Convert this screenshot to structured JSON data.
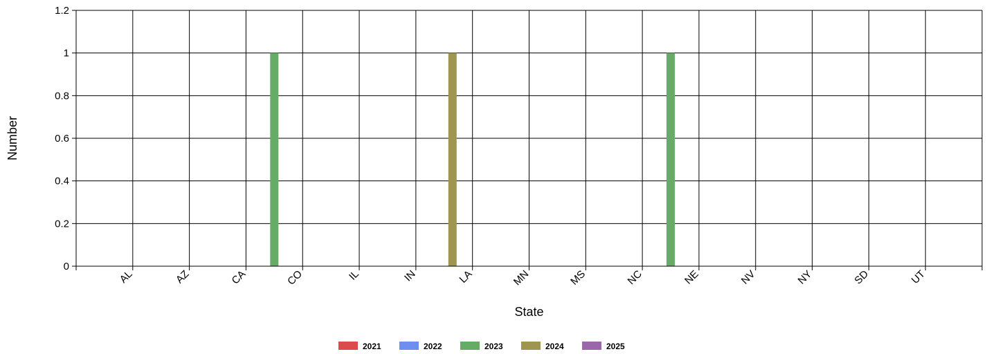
{
  "chart_data": {
    "type": "bar",
    "xlabel": "State",
    "ylabel": "Number",
    "ylim": [
      0,
      1.2
    ],
    "yticks": [
      "0",
      "0.2",
      "0.4",
      "0.6",
      "0.8",
      "1",
      "1.2"
    ],
    "categories": [
      "AL",
      "AZ",
      "CA",
      "CO",
      "IL",
      "IN",
      "LA",
      "MN",
      "MS",
      "NC",
      "NE",
      "NV",
      "NY",
      "SD",
      "UT"
    ],
    "grid": true,
    "legend_position": "bottom",
    "series": [
      {
        "name": "2021",
        "color": "#dc4b4b",
        "values": [
          0,
          0,
          0,
          0,
          0,
          0,
          0,
          0,
          0,
          0,
          0,
          0,
          0,
          0,
          0
        ]
      },
      {
        "name": "2022",
        "color": "#6f8ff0",
        "values": [
          0,
          0,
          0,
          0,
          0,
          0,
          0,
          0,
          0,
          0,
          0,
          0,
          0,
          0,
          0
        ]
      },
      {
        "name": "2023",
        "color": "#67ac66",
        "values": [
          0,
          0,
          0,
          1,
          0,
          0,
          0,
          0,
          0,
          0,
          1,
          0,
          0,
          0,
          0
        ]
      },
      {
        "name": "2024",
        "color": "#9e9550",
        "values": [
          0,
          0,
          0,
          0,
          0,
          0,
          1,
          0,
          0,
          0,
          0,
          0,
          0,
          0,
          0
        ]
      },
      {
        "name": "2025",
        "color": "#9c67a8",
        "values": [
          0,
          0,
          0,
          0,
          0,
          0,
          0,
          0,
          0,
          0,
          0,
          0,
          0,
          0,
          0
        ]
      }
    ]
  }
}
